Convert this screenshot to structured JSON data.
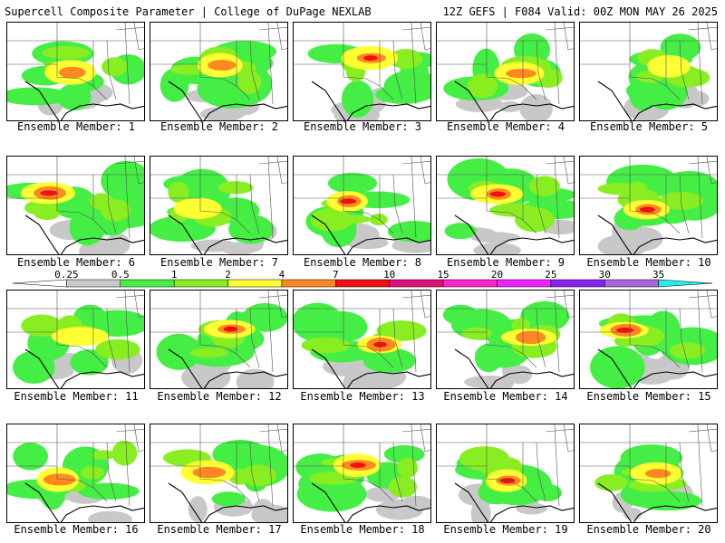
{
  "header": {
    "left_title": "Supercell Composite Parameter | College of DuPage NEXLAB",
    "right_title": "12Z GEFS | F084 Valid: 00Z MON MAY 26 2025"
  },
  "colorbar": {
    "labels": [
      "0.25",
      "0.5",
      "1",
      "2",
      "4",
      "7",
      "10",
      "15",
      "20",
      "25",
      "30",
      "35"
    ],
    "colors": [
      "#ffffff",
      "#c8c8c8",
      "#44ee44",
      "#88ee22",
      "#ffff33",
      "#ff8822",
      "#ee1111",
      "#dd1177",
      "#ff22cc",
      "#ee22ff",
      "#8822ee",
      "#aa66dd",
      "#22eeee"
    ]
  },
  "members": [
    {
      "label": "Ensemble Member: 1",
      "intensity": 2
    },
    {
      "label": "Ensemble Member: 2",
      "intensity": 2
    },
    {
      "label": "Ensemble Member: 3",
      "intensity": 3
    },
    {
      "label": "Ensemble Member: 4",
      "intensity": 2
    },
    {
      "label": "Ensemble Member: 5",
      "intensity": 1
    },
    {
      "label": "Ensemble Member: 6",
      "intensity": 3
    },
    {
      "label": "Ensemble Member: 7",
      "intensity": 1
    },
    {
      "label": "Ensemble Member: 8",
      "intensity": 3
    },
    {
      "label": "Ensemble Member: 9",
      "intensity": 3
    },
    {
      "label": "Ensemble Member: 10",
      "intensity": 3
    },
    {
      "label": "Ensemble Member: 11",
      "intensity": 1
    },
    {
      "label": "Ensemble Member: 12",
      "intensity": 3
    },
    {
      "label": "Ensemble Member: 13",
      "intensity": 3
    },
    {
      "label": "Ensemble Member: 14",
      "intensity": 2
    },
    {
      "label": "Ensemble Member: 15",
      "intensity": 3
    },
    {
      "label": "Ensemble Member: 16",
      "intensity": 2
    },
    {
      "label": "Ensemble Member: 17",
      "intensity": 2
    },
    {
      "label": "Ensemble Member: 18",
      "intensity": 3
    },
    {
      "label": "Ensemble Member: 19",
      "intensity": 3
    },
    {
      "label": "Ensemble Member: 20",
      "intensity": 2
    }
  ]
}
